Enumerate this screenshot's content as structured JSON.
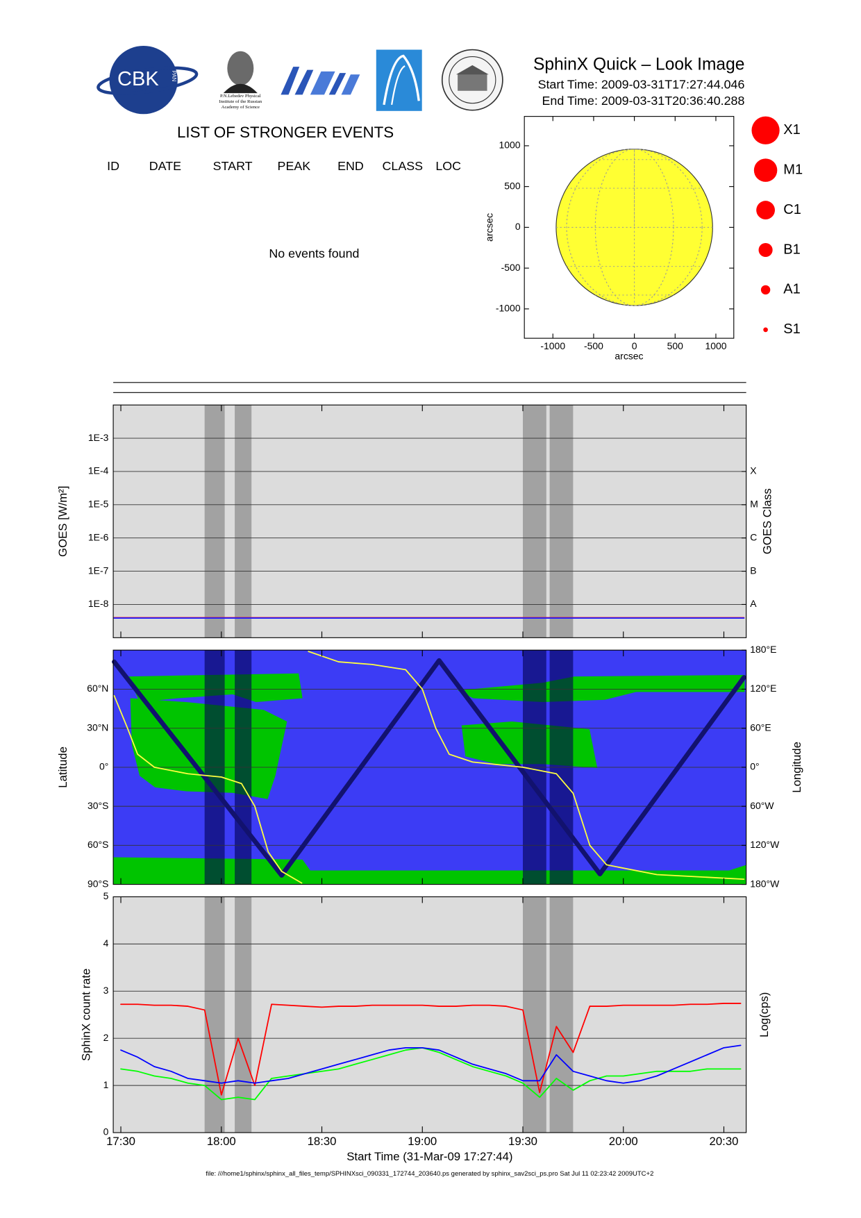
{
  "header": {
    "title": "SphinX Quick – Look Image",
    "start_time": "Start Time: 2009-03-31T17:27:44.046",
    "end_time": "End Time: 2009-03-31T20:36:40.288",
    "logos": {
      "cbk": "CBK",
      "pan": "PAN",
      "lebedev": [
        "P.N.Lebedev Physical",
        "Institute of the Russian",
        "Academy of Science"
      ]
    }
  },
  "events_table": {
    "title": "LIST OF STRONGER EVENTS",
    "columns": [
      "ID",
      "DATE",
      "START",
      "PEAK",
      "END",
      "CLASS",
      "LOC"
    ],
    "empty_message": "No events found"
  },
  "legend": {
    "classes": [
      "X1",
      "M1",
      "C1",
      "B1",
      "A1",
      "S1"
    ],
    "color": "#ff0000"
  },
  "shaded_intervals": [
    [
      "17:55",
      "18:01"
    ],
    [
      "18:04",
      "18:09"
    ],
    [
      "19:30",
      "19:37"
    ],
    [
      "19:38",
      "19:45"
    ]
  ],
  "chart_data": [
    {
      "type": "disk",
      "xlabel": "arcsec",
      "ylabel": "arcsec",
      "xlim": [
        -1350,
        1220
      ],
      "ylim": [
        -1360,
        1360
      ],
      "xticks": [
        -1000,
        -500,
        0,
        500,
        1000
      ],
      "yticks": [
        -1000,
        -500,
        0,
        500,
        1000
      ],
      "radius": 960,
      "color": "#ffff33"
    },
    {
      "type": "line",
      "ylabel": "GOES [W/m²]",
      "y2label": "GOES Class",
      "log_y": true,
      "grid": true,
      "background": "#dcdcdc",
      "shade_color": "#a2a2a2",
      "xlim": [
        "17:27:44",
        "20:36:40"
      ],
      "ylim": [
        1e-09,
        0.01
      ],
      "yticks": [
        {
          "value": 1e-08,
          "label": "1E-8"
        },
        {
          "value": 1e-07,
          "label": "1E-7"
        },
        {
          "value": 1e-06,
          "label": "1E-6"
        },
        {
          "value": 1e-05,
          "label": "1E-5"
        },
        {
          "value": 0.0001,
          "label": "1E-4"
        },
        {
          "value": 0.001,
          "label": "1E-3"
        }
      ],
      "y2lim": [
        1e-09,
        0.01
      ],
      "y2ticks": [
        {
          "value": 1e-08,
          "label": "A"
        },
        {
          "value": 1e-07,
          "label": "B"
        },
        {
          "value": 1e-06,
          "label": "C"
        },
        {
          "value": 1e-05,
          "label": "M"
        },
        {
          "value": 0.0001,
          "label": "X"
        }
      ],
      "x": [
        "17:28",
        "20:36"
      ],
      "series": [
        {
          "color": "#ff0000",
          "values": [
            4e-09,
            4e-09
          ]
        },
        {
          "color": "#2020ff",
          "values": [
            3.9e-09,
            3.9e-09
          ]
        }
      ]
    },
    {
      "type": "track",
      "ylabel": "Latitude",
      "y2label": "Longitude",
      "grid": true,
      "background": "#3c3cf5",
      "shade_color": "#000050",
      "xlim": [
        "17:27:44",
        "20:36:40"
      ],
      "ylim": [
        -90,
        90
      ],
      "yticks": [
        {
          "value": -90,
          "label": "90°S"
        },
        {
          "value": -60,
          "label": "60°S"
        },
        {
          "value": -30,
          "label": "30°S"
        },
        {
          "value": 0,
          "label": "0°"
        },
        {
          "value": 30,
          "label": "30°N"
        },
        {
          "value": 60,
          "label": "60°N"
        }
      ],
      "y2lim": [
        -180,
        180
      ],
      "y2ticks": [
        {
          "value": -180,
          "label": "180°W"
        },
        {
          "value": -120,
          "label": "120°W"
        },
        {
          "value": -60,
          "label": "60°W"
        },
        {
          "value": 0,
          "label": "0°"
        },
        {
          "value": 60,
          "label": "60°E"
        },
        {
          "value": 120,
          "label": "120°E"
        },
        {
          "value": 180,
          "label": "180°E"
        }
      ],
      "series": [
        {
          "color": "#12126e",
          "x": [
            "17:28",
            "18:18",
            "19:05",
            "19:53",
            "20:36"
          ],
          "values": [
            81,
            -83,
            82,
            -82,
            69
          ]
        },
        {
          "color": "#ffff40",
          "axis": "y2",
          "x": [
            "17:28",
            "17:32",
            "17:35",
            "17:40",
            "17:50",
            "18:00",
            "18:06",
            "18:10",
            "18:14",
            "18:18",
            "18:24",
            "18:25",
            "18:26",
            "18:35",
            "18:45",
            "18:55",
            "19:00",
            "19:04",
            "19:08",
            "19:15",
            "19:30",
            "19:40",
            "19:45",
            "19:50",
            "19:55",
            "20:10",
            "20:36"
          ],
          "values": [
            110,
            60,
            20,
            0,
            -10,
            -15,
            -25,
            -60,
            -130,
            -160,
            -178,
            null,
            178,
            162,
            158,
            150,
            120,
            60,
            20,
            8,
            0,
            -10,
            -40,
            -120,
            -150,
            -165,
            -172
          ]
        }
      ]
    },
    {
      "type": "line",
      "ylabel": "SphinX count rate",
      "y2label": "Log(cps)",
      "xlabel": "Start Time (31-Mar-09 17:27:44)",
      "grid": true,
      "background": "#dcdcdc",
      "shade_color": "#a2a2a2",
      "xlim": [
        "17:27:44",
        "20:36:40"
      ],
      "xticks": [
        "17:30",
        "18:00",
        "18:30",
        "19:00",
        "19:30",
        "20:00",
        "20:30"
      ],
      "ylim": [
        0,
        5
      ],
      "yticks": [
        0,
        1,
        2,
        3,
        4,
        5
      ],
      "x": [
        "17:30",
        "17:35",
        "17:40",
        "17:45",
        "17:50",
        "17:55",
        "18:00",
        "18:05",
        "18:10",
        "18:15",
        "18:20",
        "18:25",
        "18:30",
        "18:35",
        "18:40",
        "18:45",
        "18:50",
        "18:55",
        "19:00",
        "19:05",
        "19:10",
        "19:15",
        "19:20",
        "19:25",
        "19:30",
        "19:35",
        "19:40",
        "19:45",
        "19:50",
        "19:55",
        "20:00",
        "20:05",
        "20:10",
        "20:15",
        "20:20",
        "20:25",
        "20:30",
        "20:35"
      ],
      "series": [
        {
          "color": "#ff0000",
          "values": [
            2.72,
            2.72,
            2.7,
            2.7,
            2.68,
            2.6,
            0.8,
            2.0,
            1.0,
            2.72,
            2.7,
            2.68,
            2.66,
            2.68,
            2.68,
            2.7,
            2.7,
            2.7,
            2.7,
            2.68,
            2.68,
            2.7,
            2.7,
            2.68,
            2.6,
            0.85,
            2.25,
            1.7,
            2.68,
            2.68,
            2.7,
            2.7,
            2.7,
            2.7,
            2.72,
            2.72,
            2.74,
            2.74
          ]
        },
        {
          "color": "#00ff00",
          "values": [
            1.35,
            1.3,
            1.2,
            1.15,
            1.05,
            1.0,
            0.7,
            0.75,
            0.7,
            1.15,
            1.2,
            1.25,
            1.3,
            1.35,
            1.45,
            1.55,
            1.65,
            1.75,
            1.8,
            1.7,
            1.55,
            1.4,
            1.3,
            1.2,
            1.05,
            0.75,
            1.15,
            0.9,
            1.1,
            1.2,
            1.2,
            1.25,
            1.3,
            1.3,
            1.3,
            1.35,
            1.35,
            1.35
          ]
        },
        {
          "color": "#0000ff",
          "values": [
            1.75,
            1.6,
            1.4,
            1.3,
            1.15,
            1.1,
            1.05,
            1.1,
            1.05,
            1.1,
            1.15,
            1.25,
            1.35,
            1.45,
            1.55,
            1.65,
            1.75,
            1.8,
            1.8,
            1.75,
            1.6,
            1.45,
            1.35,
            1.25,
            1.1,
            1.1,
            1.65,
            1.3,
            1.2,
            1.1,
            1.05,
            1.1,
            1.2,
            1.35,
            1.5,
            1.65,
            1.8,
            1.85
          ]
        }
      ]
    }
  ],
  "footer": "file: ///home1/sphinx/sphinx_all_files_temp/SPHINXsci_090331_172744_203640.ps generated by sphinx_sav2sci_ps.pro Sat Jul 11 02:23:42 2009UTC+2"
}
